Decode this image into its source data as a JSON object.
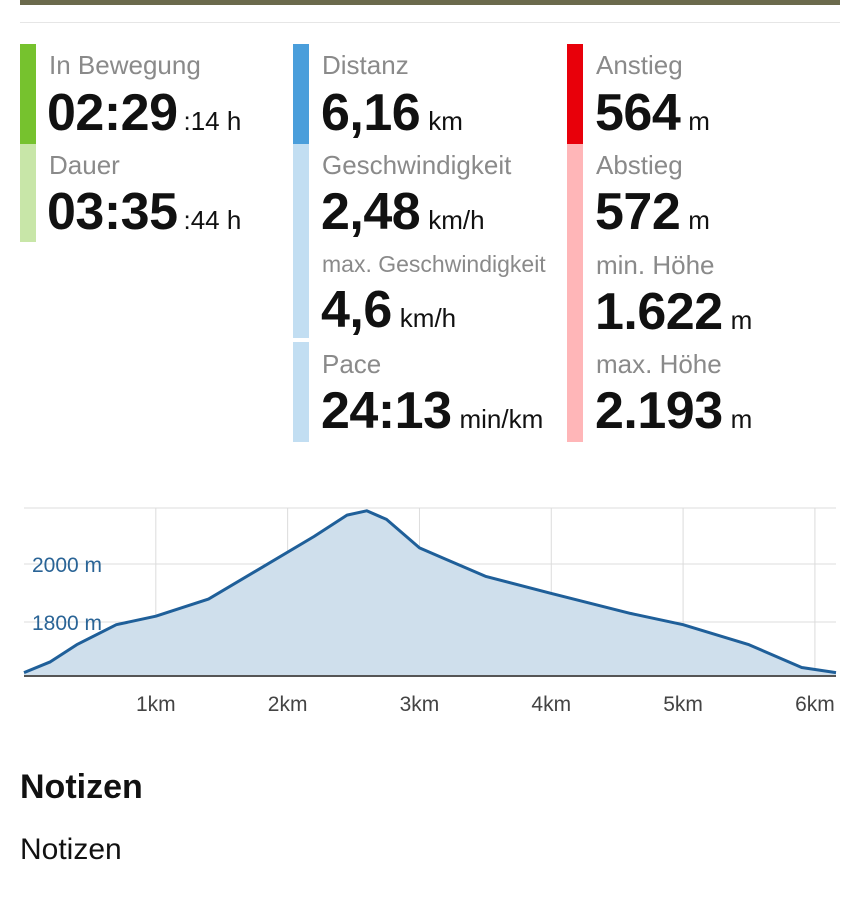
{
  "stats": {
    "moving": {
      "label": "In Bewegung",
      "value": "02:29",
      "unit": ":14 h",
      "color": "#76c22e"
    },
    "duration": {
      "label": "Dauer",
      "value": "03:35",
      "unit": ":44 h",
      "color": "#c8e6a8"
    },
    "distance": {
      "label": "Distanz",
      "value": "6,16",
      "unit": "km",
      "color": "#4a9edb"
    },
    "speed": {
      "label": "Geschwindigkeit",
      "value": "2,48",
      "unit": "km/h",
      "color": "#c2def2"
    },
    "max_speed": {
      "label": "max. Geschwindigkeit",
      "value": "4,6",
      "unit": "km/h",
      "color": "#c2def2"
    },
    "pace": {
      "label": "Pace",
      "value": "24:13",
      "unit": "min/km",
      "color": "#c2def2"
    },
    "ascent": {
      "label": "Anstieg",
      "value": "564",
      "unit": "m",
      "color": "#e8000a"
    },
    "descent": {
      "label": "Abstieg",
      "value": "572",
      "unit": "m",
      "color": "#ffb6b8"
    },
    "min_alt": {
      "label": "min. Höhe",
      "value": "1.622",
      "unit": "m",
      "color": "#ffb6b8"
    },
    "max_alt": {
      "label": "max. Höhe",
      "value": "2.193",
      "unit": "m",
      "color": "#ffb6b8"
    }
  },
  "chart_data": {
    "type": "area",
    "title": "",
    "xlabel": "",
    "ylabel": "",
    "x_ticks": [
      "1km",
      "2km",
      "3km",
      "4km",
      "5km",
      "6km"
    ],
    "y_ticks": [
      "1800 m",
      "2000 m"
    ],
    "series": [
      {
        "x": [
          0,
          0.2,
          0.4,
          0.7,
          1.0,
          1.4,
          1.8,
          2.2,
          2.45,
          2.6,
          2.75,
          3.0,
          3.2,
          3.5,
          4.0,
          4.6,
          5.0,
          5.5,
          5.9,
          6.16
        ],
        "y": [
          1622,
          1660,
          1720,
          1790,
          1820,
          1880,
          1990,
          2100,
          2175,
          2190,
          2160,
          2060,
          2020,
          1960,
          1900,
          1830,
          1790,
          1720,
          1640,
          1622
        ]
      }
    ],
    "xlim": [
      0,
      6.16
    ],
    "ylim": [
      1610,
      2200
    ],
    "grid": true,
    "fill_color": "#cfdfec",
    "line_color": "#1f5f99"
  },
  "notes": {
    "title": "Notizen",
    "body": "Notizen"
  }
}
